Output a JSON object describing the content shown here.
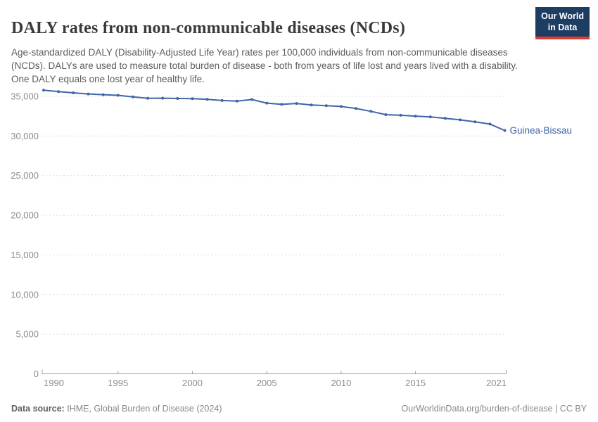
{
  "header": {
    "title": "DALY rates from non-communicable diseases (NCDs)",
    "subtitle": "Age-standardized DALY (Disability-Adjusted Life Year) rates per 100,000 individuals from non-communicable diseases (NCDs). DALYs are used to measure total burden of disease - both from years of life lost and years lived with a disability. One DALY equals one lost year of healthy life.",
    "logo": {
      "line1": "Our World",
      "line2": "in Data",
      "bg_color": "#1d3d63",
      "accent_color": "#dc3c31"
    }
  },
  "chart_data": {
    "type": "line",
    "title": "DALY rates from non-communicable diseases (NCDs)",
    "xlabel": "",
    "ylabel": "",
    "xlim": [
      1990,
      2021
    ],
    "ylim": [
      0,
      35000
    ],
    "grid": "horizontal-dashed",
    "legend_position": "end-of-line-label",
    "x_ticks": [
      1990,
      1995,
      2000,
      2005,
      2010,
      2015,
      2021
    ],
    "y_ticks": [
      0,
      5000,
      10000,
      15000,
      20000,
      25000,
      30000,
      35000
    ],
    "y_tick_labels": [
      "0",
      "5,000",
      "10,000",
      "15,000",
      "20,000",
      "25,000",
      "30,000",
      "35,000"
    ],
    "x": [
      1990,
      1991,
      1992,
      1993,
      1994,
      1995,
      1996,
      1997,
      1998,
      1999,
      2000,
      2001,
      2002,
      2003,
      2004,
      2005,
      2006,
      2007,
      2008,
      2009,
      2010,
      2011,
      2012,
      2013,
      2014,
      2015,
      2016,
      2017,
      2018,
      2019,
      2020,
      2021
    ],
    "series": [
      {
        "name": "Guinea-Bissau",
        "color": "#4165a8",
        "values": [
          35780,
          35600,
          35440,
          35300,
          35210,
          35130,
          34940,
          34760,
          34770,
          34730,
          34710,
          34620,
          34480,
          34400,
          34600,
          34150,
          33990,
          34100,
          33920,
          33820,
          33720,
          33470,
          33110,
          32690,
          32610,
          32510,
          32410,
          32220,
          32040,
          31790,
          31500,
          30700
        ]
      }
    ],
    "axis_color": "#9e9e9e",
    "grid_color": "#dcdcdc"
  },
  "footer": {
    "source_label": "Data source:",
    "source_value": " IHME, Global Burden of Disease (2024)",
    "credit": "OurWorldinData.org/burden-of-disease | CC BY"
  }
}
